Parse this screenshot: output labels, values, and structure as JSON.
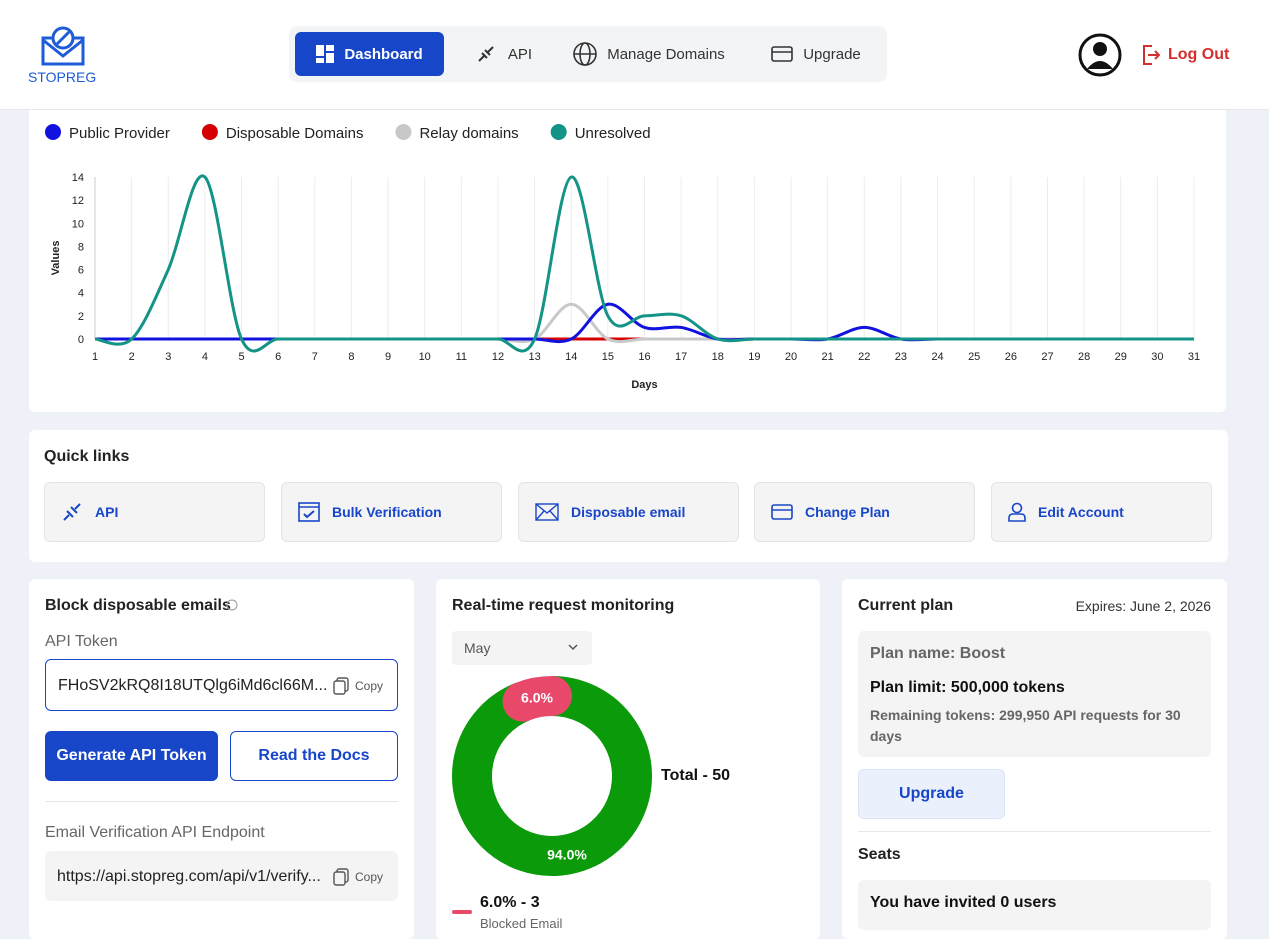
{
  "header": {
    "logo": "STOPREG",
    "nav": [
      "Dashboard",
      "API",
      "Manage Domains",
      "Upgrade"
    ],
    "logout": "Log Out"
  },
  "chart": {
    "type": "line",
    "x_label": "Days",
    "y_label": "Values",
    "x": [
      1,
      2,
      3,
      4,
      5,
      6,
      7,
      8,
      9,
      10,
      11,
      12,
      13,
      14,
      15,
      16,
      17,
      18,
      19,
      20,
      21,
      22,
      23,
      24,
      25,
      26,
      27,
      28,
      29,
      30,
      31
    ],
    "ylim": [
      0,
      14
    ],
    "yticks": [
      0,
      2,
      4,
      6,
      8,
      10,
      12,
      14
    ],
    "grid": true,
    "legend": "top-left",
    "series": [
      {
        "name": "Public Provider",
        "color": "#1212e0",
        "values": [
          0,
          0,
          0,
          0,
          0,
          0,
          0,
          0,
          0,
          0,
          0,
          0,
          0,
          0,
          3,
          1,
          1,
          0,
          0,
          0,
          0,
          1,
          0,
          0,
          0,
          0,
          0,
          0,
          0,
          0,
          0
        ]
      },
      {
        "name": "Disposable Domains",
        "color": "#d40000",
        "values": [
          0,
          0,
          0,
          0,
          0,
          0,
          0,
          0,
          0,
          0,
          0,
          0,
          0,
          0,
          0,
          0,
          0,
          0,
          0,
          0,
          0,
          0,
          0,
          0,
          0,
          0,
          0,
          0,
          0,
          0,
          0
        ]
      },
      {
        "name": "Relay domains",
        "color": "#c8c8c8",
        "values": [
          0,
          0,
          0,
          0,
          0,
          0,
          0,
          0,
          0,
          0,
          0,
          0,
          0,
          3,
          0,
          0,
          0,
          0,
          0,
          0,
          0,
          0,
          0,
          0,
          0,
          0,
          0,
          0,
          0,
          0,
          0
        ]
      },
      {
        "name": "Unresolved",
        "color": "#139487",
        "values": [
          0,
          0,
          6,
          14,
          0,
          0,
          0,
          0,
          0,
          0,
          0,
          0,
          0,
          14,
          2,
          2,
          2,
          0,
          0,
          0,
          0,
          0,
          0,
          0,
          0,
          0,
          0,
          0,
          0,
          0,
          0
        ]
      }
    ]
  },
  "quick_links": {
    "title": "Quick links",
    "items": [
      "API",
      "Bulk Verification",
      "Disposable email",
      "Change Plan",
      "Edit Account"
    ]
  },
  "block": {
    "title": "Block disposable emails",
    "token_label": "API Token",
    "token": "FHoSV2kRQ8I18UTQlg6iMd6cl66M...",
    "copy": "Copy",
    "generate": "Generate API Token",
    "docs": "Read the Docs",
    "endpoint_label": "Email Verification API Endpoint",
    "endpoint": "https://api.stopreg.com/api/v1/verify...",
    "copy2": "Copy"
  },
  "monitor": {
    "title": "Real-time request monitoring",
    "month": "May",
    "total": "Total - 50",
    "donut": {
      "type": "pie",
      "values": [
        6,
        94
      ],
      "value_labels": [
        "6.0%",
        "94.0%"
      ],
      "colors": [
        "#e8496b",
        "#0a9a0a"
      ]
    },
    "legend": {
      "label": "6.0% - 3",
      "name": "Blocked Email"
    }
  },
  "plan": {
    "title": "Current plan",
    "expires": "Expires: June 2, 2026",
    "name": "Plan name: Boost",
    "limit": "Plan limit: 500,000 tokens",
    "remaining": "Remaining tokens: 299,950 API requests for 30 days",
    "upgrade": "Upgrade",
    "seats": "Seats",
    "invited": "You have invited 0 users"
  }
}
